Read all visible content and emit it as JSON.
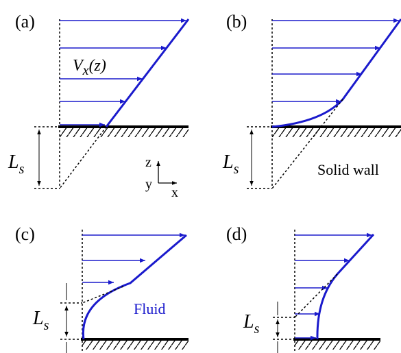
{
  "panels": [
    {
      "label": "(a)"
    },
    {
      "label": "(b)"
    },
    {
      "label": "(c)"
    },
    {
      "label": "(d)"
    }
  ],
  "velocity_label": {
    "symbol": "V",
    "subscript": "x",
    "argument": "(z)"
  },
  "slip_length": {
    "symbol": "L",
    "subscript": "s"
  },
  "axes": {
    "z": "z",
    "y": "y",
    "x": "x"
  },
  "annotations": {
    "solid_wall": "Solid wall",
    "fluid": "Fluid"
  }
}
